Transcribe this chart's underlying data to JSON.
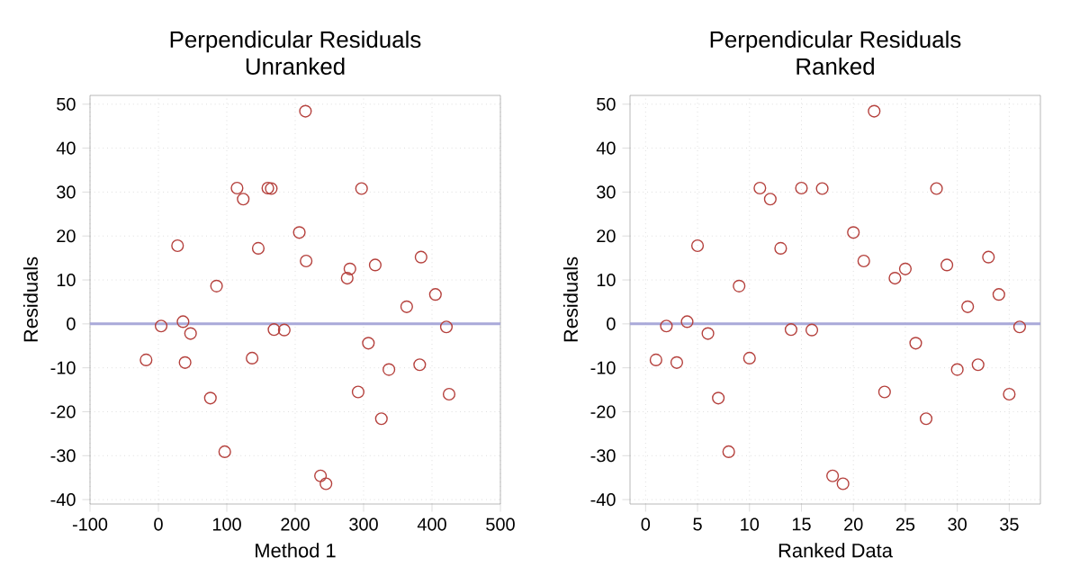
{
  "chart_data": [
    {
      "type": "scatter",
      "title": "Perpendicular Residuals",
      "subtitle": "Unranked",
      "xlabel": "Method 1",
      "ylabel": "Residuals",
      "color": "#b5413d",
      "marker": "circle",
      "grid": true,
      "x": [
        -18,
        4,
        39,
        36,
        28,
        47,
        76,
        97,
        85,
        137,
        115,
        124,
        146,
        169,
        160,
        184,
        165,
        237,
        245,
        206,
        216,
        215,
        292,
        276,
        280,
        307,
        326,
        297,
        317,
        337,
        363,
        382,
        384,
        405,
        425,
        421
      ],
      "values": [
        -8.2,
        -0.5,
        -8.8,
        0.5,
        17.8,
        -2.2,
        -16.9,
        -29.1,
        8.6,
        -7.8,
        30.9,
        28.4,
        17.2,
        -1.3,
        30.9,
        -1.4,
        30.8,
        -34.6,
        -36.4,
        20.8,
        14.3,
        48.4,
        -15.5,
        10.4,
        12.5,
        -4.4,
        -21.6,
        30.8,
        13.4,
        -10.4,
        3.9,
        -9.3,
        15.2,
        6.7,
        -16.0,
        -0.7
      ],
      "xlim": [
        -100,
        500
      ],
      "ylim": [
        -41,
        52
      ],
      "xticks": [
        -100,
        0,
        100,
        200,
        300,
        400,
        500
      ],
      "yticks": [
        -40,
        -30,
        -20,
        -10,
        0,
        10,
        20,
        30,
        40,
        50
      ],
      "ref_lines": [
        {
          "axis": "y",
          "value": 0,
          "color": "#a9a9d9"
        }
      ]
    },
    {
      "type": "scatter",
      "title": "Perpendicular Residuals",
      "subtitle": "Ranked",
      "xlabel": "Ranked Data",
      "ylabel": "Residuals",
      "color": "#b5413d",
      "marker": "circle",
      "grid": true,
      "x": [
        1,
        2,
        3,
        4,
        5,
        6,
        7,
        8,
        9,
        10,
        11,
        12,
        13,
        14,
        15,
        16,
        17,
        18,
        19,
        20,
        21,
        22,
        23,
        24,
        25,
        26,
        27,
        28,
        29,
        30,
        31,
        32,
        33,
        34,
        35,
        36
      ],
      "values": [
        -8.2,
        -0.5,
        -8.8,
        0.5,
        17.8,
        -2.2,
        -16.9,
        -29.1,
        8.6,
        -7.8,
        30.9,
        28.4,
        17.2,
        -1.3,
        30.9,
        -1.4,
        30.8,
        -34.6,
        -36.4,
        20.8,
        14.3,
        48.4,
        -15.5,
        10.4,
        12.5,
        -4.4,
        -21.6,
        30.8,
        13.4,
        -10.4,
        3.9,
        -9.3,
        15.2,
        6.7,
        -16.0,
        -0.7
      ],
      "xlim": [
        -1.5,
        38
      ],
      "ylim": [
        -41,
        52
      ],
      "xticks": [
        0,
        5,
        10,
        15,
        20,
        25,
        30,
        35
      ],
      "yticks": [
        -40,
        -30,
        -20,
        -10,
        0,
        10,
        20,
        30,
        40,
        50
      ],
      "ref_lines": [
        {
          "axis": "y",
          "value": 0,
          "color": "#a9a9d9"
        }
      ]
    }
  ]
}
